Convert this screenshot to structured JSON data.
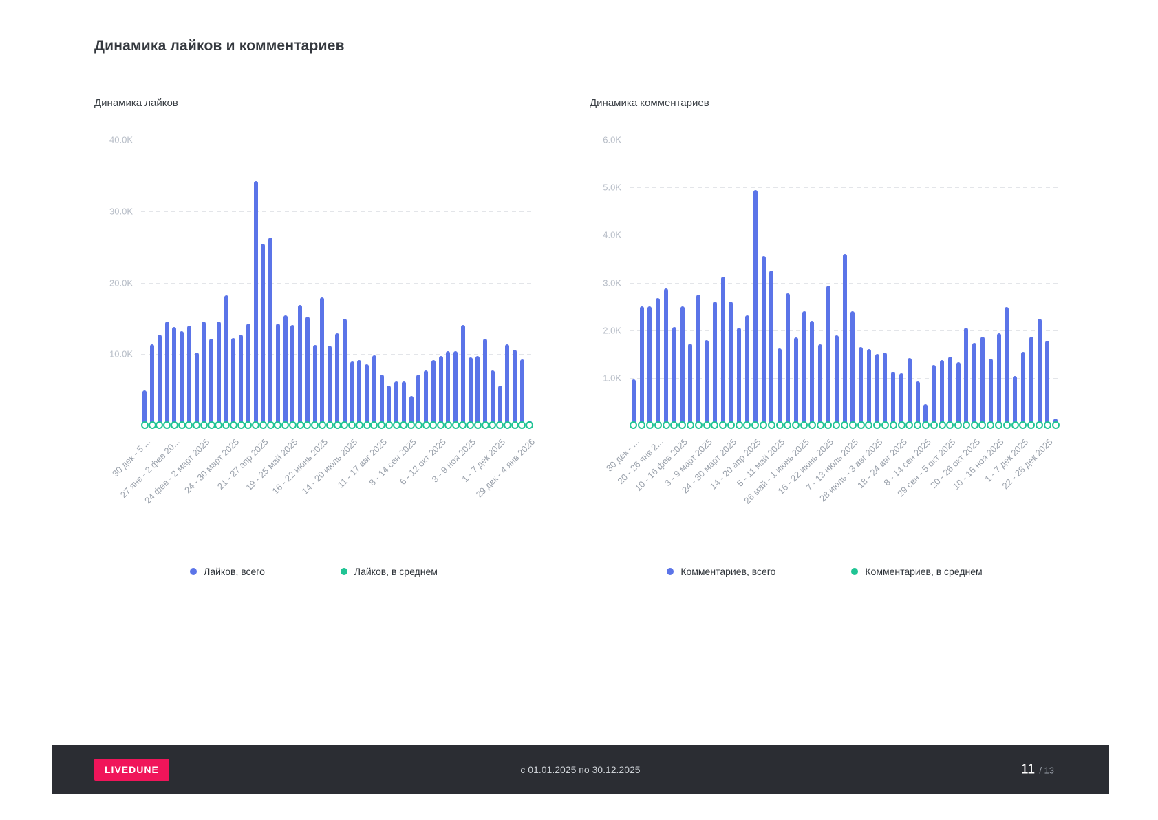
{
  "page": {
    "title": "Динамика лайков и комментариев"
  },
  "footer": {
    "brand": "LIVEDUNE",
    "period": "с 01.01.2025 по 30.12.2025",
    "page_number": "11",
    "page_total": "/ 13"
  },
  "chart_data": [
    {
      "type": "bar",
      "title": "Динамика лайков",
      "unit": "K = thousands of likes per week",
      "n_points": 53,
      "ymax_k": 40,
      "ylim": [
        0,
        40000
      ],
      "yticks_k": [
        10,
        20,
        30,
        40
      ],
      "ytick_labels": [
        "10.0K",
        "20.0K",
        "30.0K",
        "40.0K"
      ],
      "grid": "dashed horizontal, no axis lines",
      "legend_position": "bottom-center",
      "xtick_interval": 4,
      "xtick_rotation_deg": -45,
      "xtick_labels": [
        "30 дек - 5 ...",
        "27 янв - 2 фев 20...",
        "24 фев - 2 март 2025",
        "24 - 30 март 2025",
        "21 - 27 апр 2025",
        "19 - 25 май 2025",
        "16 - 22 июнь 2025",
        "14 - 20 июль 2025",
        "11 - 17 авг 2025",
        "8 - 14 сен 2025",
        "6 - 12 окт 2025",
        "3 - 9 ноя 2025",
        "1 - 7 дек 2025",
        "29 дек - 4 янв 2026"
      ],
      "series": [
        {
          "name": "Лайков, всего",
          "style": "bar",
          "color": "#5b74e8",
          "values_k": [
            4.9,
            11.4,
            12.7,
            14.6,
            13.8,
            13.2,
            14.0,
            10.2,
            14.6,
            12.1,
            14.6,
            18.2,
            12.2,
            12.7,
            14.3,
            34.2,
            25.4,
            26.3,
            14.3,
            15.4,
            14.1,
            16.9,
            15.2,
            11.3,
            17.9,
            11.2,
            12.9,
            14.9,
            9.0,
            9.2,
            8.6,
            9.8,
            7.1,
            5.6,
            6.2,
            6.2,
            4.1,
            7.1,
            7.7,
            9.2,
            9.7,
            10.4,
            10.4,
            14.1,
            9.5,
            9.7,
            12.1,
            7.7,
            5.6,
            11.4,
            10.6,
            9.3,
            0.7
          ]
        },
        {
          "name": "Лайков, в среднем",
          "style": "ring-marker",
          "color": "#20c494",
          "values_note": "ring markers sit at ≈0 on the baseline for all 53 weeks"
        }
      ]
    },
    {
      "type": "bar",
      "title": "Динамика комментариев",
      "unit": "K = thousands of comments per week",
      "n_points": 53,
      "ymax_k": 6,
      "ylim": [
        0,
        6000
      ],
      "yticks_k": [
        1,
        2,
        3,
        4,
        5,
        6
      ],
      "ytick_labels": [
        "1.0K",
        "2.0K",
        "3.0K",
        "4.0K",
        "5.0K",
        "6.0K"
      ],
      "grid": "dashed horizontal, no axis lines",
      "legend_position": "bottom-center",
      "xtick_interval": 3,
      "xtick_rotation_deg": -45,
      "xtick_labels": [
        "30 дек - ...",
        "20 - 26 янв 2...",
        "10 - 16 фев 2025",
        "3 - 9 март 2025",
        "24 - 30 март 2025",
        "14 - 20 апр 2025",
        "5 - 11 май 2025",
        "26 май - 1 июнь 2025",
        "16 - 22 июнь 2025",
        "7 - 13 июль 2025",
        "28 июль - 3 авг 2025",
        "18 - 24 авг 2025",
        "8 - 14 сен 2025",
        "29 сен - 5 окт 2025",
        "20 - 26 окт 2025",
        "10 - 16 ноя 2025",
        "1 - 7 дек 2025",
        "22 - 28 дек 2025"
      ],
      "series": [
        {
          "name": "Комментариев, всего",
          "style": "bar",
          "color": "#5b74e8",
          "values_k": [
            0.97,
            2.5,
            2.5,
            2.67,
            2.88,
            2.07,
            2.5,
            1.72,
            2.75,
            1.8,
            2.6,
            3.13,
            2.6,
            2.05,
            2.32,
            4.95,
            3.55,
            3.25,
            1.62,
            2.78,
            1.85,
            2.4,
            2.2,
            1.7,
            2.93,
            1.9,
            3.6,
            2.4,
            1.65,
            1.6,
            1.5,
            1.53,
            1.13,
            1.1,
            1.42,
            0.93,
            0.45,
            1.27,
            1.37,
            1.45,
            1.33,
            2.06,
            1.73,
            1.87,
            1.4,
            1.94,
            2.48,
            1.04,
            1.54,
            1.86,
            2.24,
            1.78,
            0.14
          ]
        },
        {
          "name": "Комментариев, в среднем",
          "style": "ring-marker",
          "color": "#20c494",
          "values_note": "ring markers sit at ≈0 on the baseline for all 53 weeks"
        }
      ]
    }
  ]
}
